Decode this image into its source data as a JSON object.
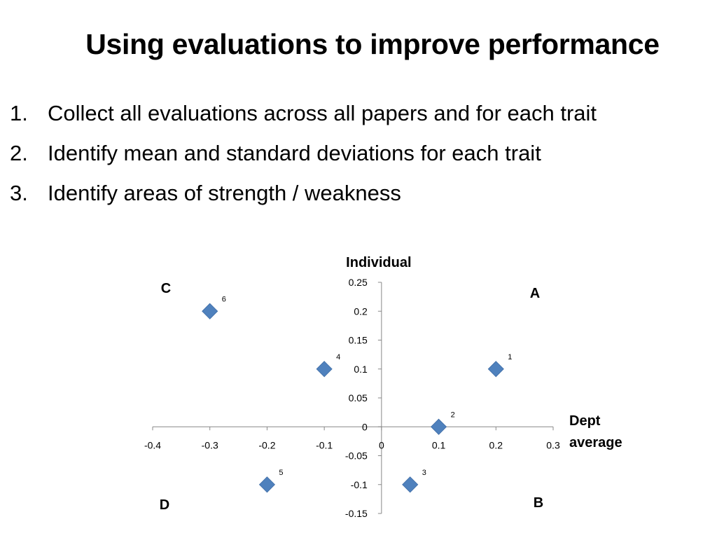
{
  "slide": {
    "title": "Using evaluations to improve performance",
    "bullets": [
      {
        "num": "1.",
        "text": "Collect all evaluations across all papers and for each trait"
      },
      {
        "num": "2.",
        "text": "Identify mean and standard deviations for each trait"
      },
      {
        "num": "3.",
        "text": "Identify areas of strength / weakness"
      }
    ]
  },
  "chart_data": {
    "type": "scatter",
    "xlabel": "Dept average",
    "xlabel_lines": [
      "Dept",
      "average"
    ],
    "ylabel": "Individual",
    "xlim": [
      -0.4,
      0.3
    ],
    "ylim": [
      -0.15,
      0.25
    ],
    "xticks": [
      "-0.4",
      "-0.3",
      "-0.2",
      "-0.1",
      "0",
      "0.1",
      "0.2",
      "0.3"
    ],
    "xtick_values": [
      -0.4,
      -0.3,
      -0.2,
      -0.1,
      0,
      0.1,
      0.2,
      0.3
    ],
    "yticks": [
      "0.25",
      "0.2",
      "0.15",
      "0.1",
      "0.05",
      "0",
      "-0.05",
      "-0.1",
      "-0.15"
    ],
    "ytick_values": [
      0.25,
      0.2,
      0.15,
      0.1,
      0.05,
      0,
      -0.05,
      -0.1,
      -0.15
    ],
    "grid": false,
    "legend": "none",
    "marker": "diamond",
    "marker_color": "#4f81bd",
    "points": [
      {
        "label": "1",
        "x": 0.2,
        "y": 0.1
      },
      {
        "label": "2",
        "x": 0.1,
        "y": 0.0
      },
      {
        "label": "3",
        "x": 0.05,
        "y": -0.1
      },
      {
        "label": "4",
        "x": -0.1,
        "y": 0.1
      },
      {
        "label": "5",
        "x": -0.2,
        "y": -0.1
      },
      {
        "label": "6",
        "x": -0.3,
        "y": 0.2
      }
    ],
    "quadrants": {
      "top_left": "C",
      "top_right": "A",
      "bottom_left": "D",
      "bottom_right": "B"
    }
  }
}
